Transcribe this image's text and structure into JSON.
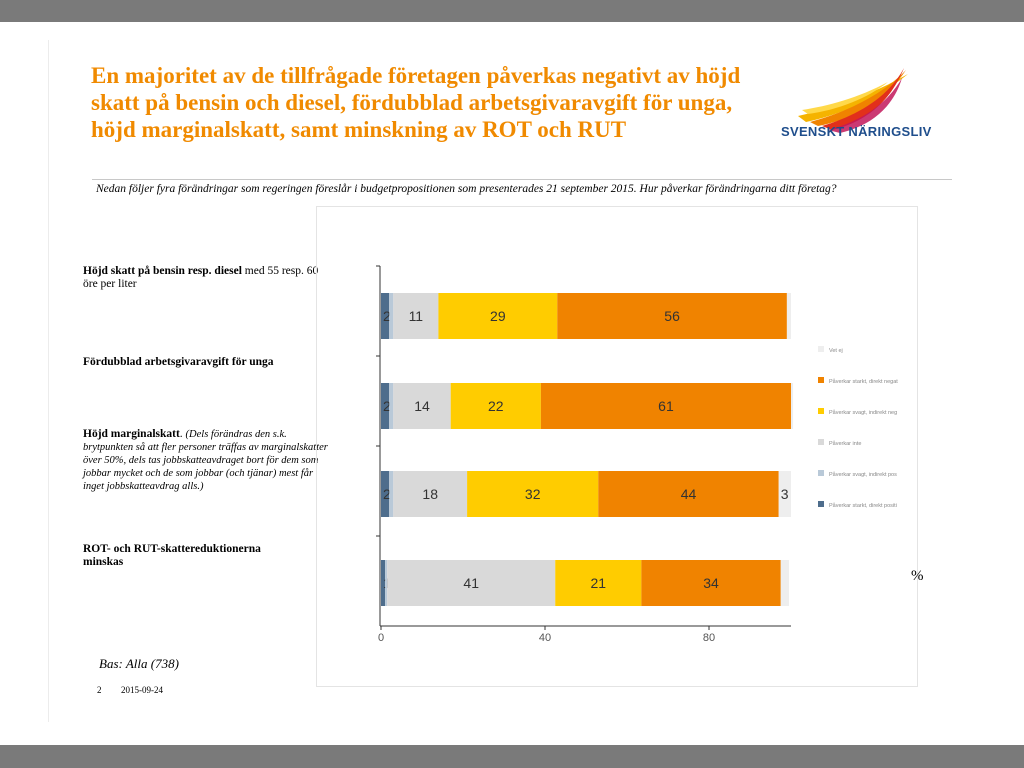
{
  "slide": {
    "title": "En majoritet av de tillfrågade företagen påverkas negativt av höjd skatt på bensin och diesel, fördubblad arbetsgivaravgift för unga, höjd marginalskatt, samt minskning av ROT och RUT",
    "logo_text": "SVENSKT NÄRINGSLIV",
    "question": "Nedan följer fyra förändringar som regeringen föreslår i budgetpropositionen som presenterades 21 september 2015. Hur påverkar förändringarna ditt företag?",
    "categories": [
      {
        "bold": "Höjd skatt på bensin resp. diesel",
        "rest": " med 55 resp. 60 öre per liter",
        "note": ""
      },
      {
        "bold": "Fördubblad arbetsgivaravgift för unga",
        "rest": "",
        "note": ""
      },
      {
        "bold": "Höjd marginalskatt",
        "rest": ". ",
        "note": "(Dels förändras den s.k. brytpunkten så att fler personer träffas av marginalskatter över 50%, dels tas jobbskatteavdraget bort för dem som jobbar mycket och de som jobbar (och tjänar) mest får inget jobbskatteavdrag alls.)"
      },
      {
        "bold": "ROT- och RUT-skattereduktionerna minskas",
        "rest": "",
        "note": ""
      }
    ],
    "percent_sign": "%",
    "base": "Bas: Alla (738)",
    "page_number": "2",
    "date": "2015-09-24"
  },
  "chart_data": {
    "type": "bar",
    "orientation": "horizontal",
    "stacked": true,
    "categories": [
      "Höjd skatt på bensin resp. diesel",
      "Fördubblad arbetsgivaravgift för unga",
      "Höjd marginalskatt",
      "ROT- och RUT-skattereduktionerna minskas"
    ],
    "series": [
      {
        "name": "Påverkar starkt, direkt positi",
        "color": "#4e6d8c",
        "values": [
          2,
          2,
          2,
          1
        ],
        "labels": [
          "2",
          "2",
          "2",
          "1"
        ]
      },
      {
        "name": "Påverkar svagt, indirekt pos",
        "color": "#b9c9d8",
        "values": [
          1,
          1,
          1,
          0.5
        ],
        "labels": [
          "",
          "",
          "",
          ""
        ]
      },
      {
        "name": "Påverkar inte",
        "color": "#d9d9d9",
        "values": [
          11,
          14,
          18,
          41
        ],
        "labels": [
          "11",
          "14",
          "18",
          "41"
        ]
      },
      {
        "name": "Påverkar svagt, indirekt neg",
        "color": "#ffcc00",
        "values": [
          29,
          22,
          32,
          21
        ],
        "labels": [
          "29",
          "22",
          "32",
          "21"
        ]
      },
      {
        "name": "Påverkar starkt, direkt negat",
        "color": "#f08300",
        "values": [
          56,
          61,
          44,
          34
        ],
        "labels": [
          "56",
          "61",
          "44",
          "34"
        ]
      },
      {
        "name": "Vet ej",
        "color": "#eeeeee",
        "values": [
          1,
          0.5,
          3,
          2
        ],
        "labels": [
          "",
          "",
          "3",
          ""
        ]
      }
    ],
    "legend_order": [
      "Vet ej",
      "Påverkar starkt, direkt negat",
      "Påverkar svagt, indirekt neg",
      "Påverkar inte",
      "Påverkar svagt, indirekt pos",
      "Påverkar starkt, direkt positi"
    ],
    "x_ticks": [
      0,
      40,
      80
    ],
    "xlim": [
      0,
      100
    ],
    "grid": false,
    "legend_position": "right"
  }
}
